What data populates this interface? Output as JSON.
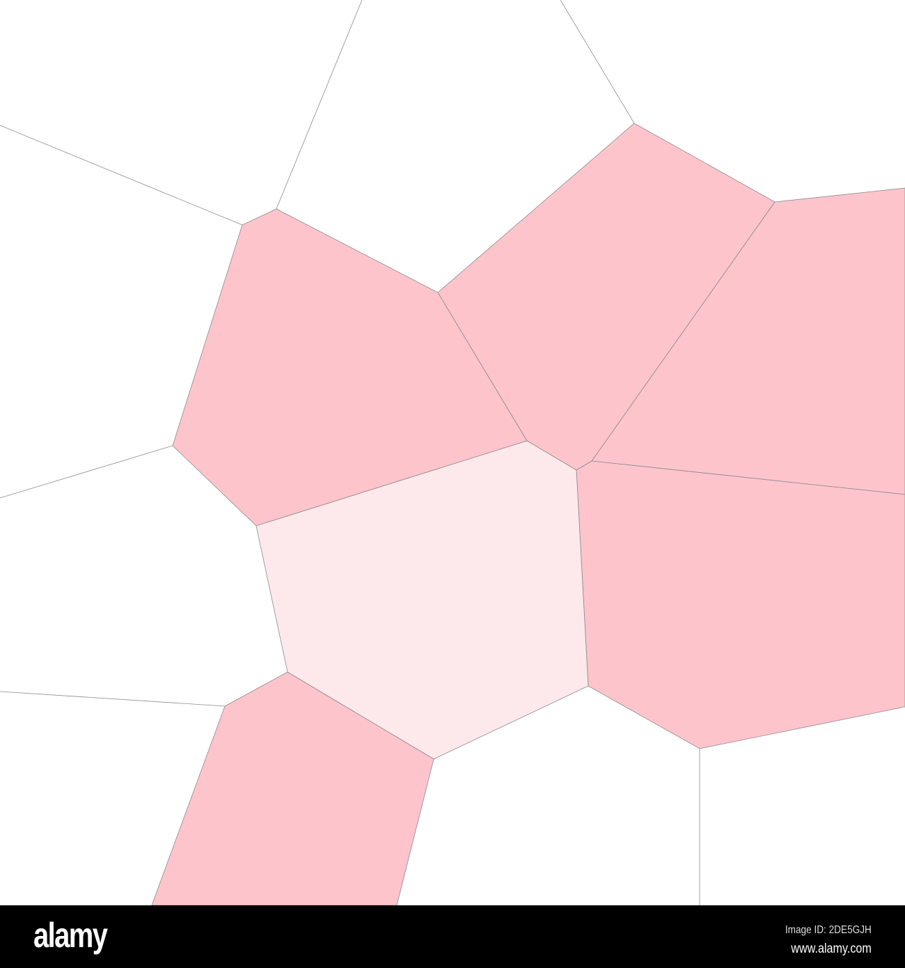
{
  "diagram": {
    "type": "voronoi",
    "colors": {
      "background": "#ffffff",
      "cell_pink": "#fdc4cc",
      "cell_light_pink": "#fde8ec",
      "edge": "#8a8a8a"
    },
    "cells": [
      {
        "fill": "cell_pink"
      },
      {
        "fill": "cell_pink"
      },
      {
        "fill": "cell_pink"
      },
      {
        "fill": "cell_pink"
      },
      {
        "fill": "cell_light_pink"
      },
      {
        "fill": "cell_pink"
      }
    ]
  },
  "footer": {
    "logo": "alamy",
    "image_id": "Image ID: 2DE5GJH",
    "website": "www.alamy.com"
  }
}
